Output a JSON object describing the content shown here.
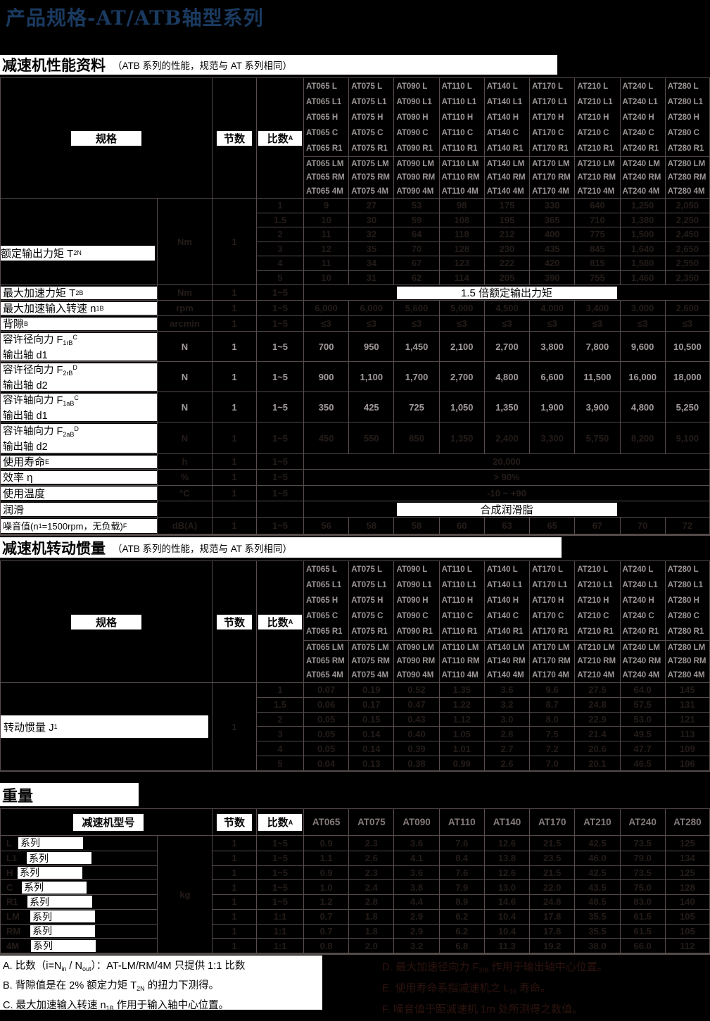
{
  "page": {
    "title": "产品规格-AT/ATB轴型系列"
  },
  "colors": {
    "title": "#1a3a60",
    "page_bg": "#000000",
    "box_bg": "#ffffff",
    "grid": "#554b4b",
    "bright_text": "#a39b9b",
    "header_text": "#9e9696",
    "faint_text": "#241c19",
    "faint_red": "#2e130e"
  },
  "sections": {
    "performance": {
      "title": "减速机性能资料",
      "subtitle": "（ATB 系列的性能，规范与 AT 系列相同）"
    },
    "inertia": {
      "title": "减速机转动惯量",
      "subtitle": "（ATB 系列的性能，规范与 AT 系列相同）"
    },
    "weight": {
      "title": "重量"
    }
  },
  "table_header": {
    "spec": "规格",
    "stages": "节数",
    "ratio": "比数",
    "ratio_sup": "A"
  },
  "models": [
    "AT065",
    "AT075",
    "AT090",
    "AT110",
    "AT140",
    "AT170",
    "AT210",
    "AT240",
    "AT280"
  ],
  "variant_groups": [
    [
      "L",
      "L1",
      "H",
      "C",
      "R1"
    ],
    [
      "LM",
      "RM",
      "4M"
    ]
  ],
  "performance_rows": [
    {
      "id": "t2n",
      "type": "block",
      "vis": "faint",
      "unit": "Nm",
      "stages": "1",
      "label": [
        [
          "t",
          "额定输出力矩 T"
        ],
        [
          "sub",
          "2N"
        ]
      ],
      "subrows": [
        {
          "ratio": "1",
          "values": [
            "9",
            "27",
            "53",
            "98",
            "175",
            "330",
            "640",
            "1,250",
            "2,050"
          ]
        },
        {
          "ratio": "1.5",
          "values": [
            "10",
            "30",
            "59",
            "108",
            "195",
            "365",
            "710",
            "1,380",
            "2,250"
          ]
        },
        {
          "ratio": "2",
          "values": [
            "11",
            "32",
            "64",
            "118",
            "212",
            "400",
            "775",
            "1,500",
            "2,450"
          ]
        },
        {
          "ratio": "3",
          "values": [
            "12",
            "35",
            "70",
            "128",
            "230",
            "435",
            "845",
            "1,640",
            "2,650"
          ]
        },
        {
          "ratio": "4",
          "values": [
            "11",
            "34",
            "67",
            "123",
            "222",
            "420",
            "815",
            "1,580",
            "2,550"
          ]
        },
        {
          "ratio": "5",
          "values": [
            "10",
            "31",
            "62",
            "114",
            "205",
            "390",
            "755",
            "1,460",
            "2,350"
          ]
        }
      ]
    },
    {
      "id": "t2b",
      "type": "span",
      "vis": "faint",
      "unit": "Nm",
      "stages": "1",
      "ratio": "1~5",
      "label": [
        [
          "t",
          "最大加速力矩 T"
        ],
        [
          "sub",
          "2B"
        ]
      ],
      "span_box": "1.5 倍额定输出力矩"
    },
    {
      "id": "n1b",
      "type": "cells",
      "vis": "faint",
      "unit": "rpm",
      "stages": "1",
      "ratio": "1~5",
      "label": [
        [
          "t",
          "最大加速输入转速 n"
        ],
        [
          "sub",
          "1B"
        ]
      ],
      "values": [
        "6,000",
        "6,000",
        "5,600",
        "5,000",
        "4,500",
        "4,000",
        "3,400",
        "3,000",
        "2,600"
      ]
    },
    {
      "id": "backlash",
      "type": "cells",
      "vis": "faint",
      "unit": "arcmin",
      "stages": "1",
      "ratio": "1~5",
      "label": [
        [
          "t",
          "背隙 "
        ],
        [
          "sup",
          "B"
        ]
      ],
      "values": [
        "≤3",
        "≤3",
        "≤3",
        "≤3",
        "≤3",
        "≤3",
        "≤3",
        "≤3",
        "≤3"
      ]
    },
    {
      "id": "f1rb",
      "type": "cells2",
      "vis": "bright",
      "unit": "N",
      "stages": "1",
      "ratio": "1~5",
      "label": [
        [
          "t",
          "容许径向力 F"
        ],
        [
          "sub",
          "1rB"
        ],
        [
          "sup",
          "C"
        ]
      ],
      "label2": "输出轴 d1",
      "values": [
        "700",
        "950",
        "1,450",
        "2,100",
        "2,700",
        "3,800",
        "7,800",
        "9,600",
        "10,500"
      ]
    },
    {
      "id": "f2rb",
      "type": "cells2",
      "vis": "bright",
      "unit": "N",
      "stages": "1",
      "ratio": "1~5",
      "label": [
        [
          "t",
          "容许径向力 F"
        ],
        [
          "sub",
          "2rB"
        ],
        [
          "sup",
          "D"
        ]
      ],
      "label2": "输出轴 d2",
      "values": [
        "900",
        "1,100",
        "1,700",
        "2,700",
        "4,800",
        "6,600",
        "11,500",
        "16,000",
        "18,000"
      ]
    },
    {
      "id": "f1ab",
      "type": "cells2",
      "vis": "bright",
      "unit": "N",
      "stages": "1",
      "ratio": "1~5",
      "label": [
        [
          "t",
          "容许轴向力 F"
        ],
        [
          "sub",
          "1aB"
        ],
        [
          "sup",
          "C"
        ]
      ],
      "label2": "输出轴 d1",
      "values": [
        "350",
        "425",
        "725",
        "1,050",
        "1,350",
        "1,900",
        "3,900",
        "4,800",
        "5,250"
      ]
    },
    {
      "id": "f2ab",
      "type": "cells2",
      "vis": "faint",
      "unit": "N",
      "stages": "1",
      "ratio": "1~5",
      "label": [
        [
          "t",
          "容许轴向力 F"
        ],
        [
          "sub",
          "2aB"
        ],
        [
          "sup",
          "D"
        ]
      ],
      "label2": "输出轴 d2",
      "values": [
        "450",
        "550",
        "850",
        "1,350",
        "2,400",
        "3,300",
        "5,750",
        "8,200",
        "9,100"
      ]
    },
    {
      "id": "life",
      "type": "span",
      "vis": "faint",
      "unit": "h",
      "stages": "1",
      "ratio": "1~5",
      "label": [
        [
          "t",
          "使用寿命 "
        ],
        [
          "sup",
          "E"
        ]
      ],
      "span_text": "20,000"
    },
    {
      "id": "eff",
      "type": "span",
      "vis": "faint",
      "unit": "%",
      "stages": "1",
      "ratio": "1~5",
      "label": [
        [
          "t",
          "效率 η"
        ]
      ],
      "span_text": "> 90%"
    },
    {
      "id": "temp",
      "type": "span",
      "vis": "faint",
      "unit": "°C",
      "stages": "1",
      "ratio": "1~5",
      "label": [
        [
          "t",
          "使用温度"
        ]
      ],
      "span_text": "-10 ~ +90"
    },
    {
      "id": "lub",
      "type": "span",
      "vis": "faint",
      "unit": "",
      "stages": "",
      "ratio": "",
      "label": [
        [
          "t",
          "润滑"
        ]
      ],
      "span_box": "合成润滑脂"
    },
    {
      "id": "noise",
      "type": "cells",
      "vis": "faint",
      "unit": "dB(A)",
      "stages": "1",
      "ratio": "1~5",
      "small_label": true,
      "label": [
        [
          "t",
          "噪音值(n"
        ],
        [
          "sub",
          "1"
        ],
        [
          "t",
          "=1500rpm，无负载)"
        ],
        [
          "sup",
          "F"
        ]
      ],
      "values": [
        "56",
        "58",
        "58",
        "60",
        "63",
        "65",
        "67",
        "70",
        "72"
      ]
    }
  ],
  "inertia_row": {
    "label": [
      [
        "t",
        "转动惯量 J"
      ],
      [
        "sub",
        "1"
      ]
    ],
    "stages": "1",
    "subrows": [
      {
        "ratio": "1",
        "values": [
          "0.07",
          "0.19",
          "0.52",
          "1.35",
          "3.6",
          "9.6",
          "27.5",
          "64.0",
          "145"
        ]
      },
      {
        "ratio": "1.5",
        "values": [
          "0.06",
          "0.17",
          "0.47",
          "1.22",
          "3.2",
          "8.7",
          "24.8",
          "57.5",
          "131"
        ]
      },
      {
        "ratio": "2",
        "values": [
          "0.05",
          "0.15",
          "0.43",
          "1.12",
          "3.0",
          "8.0",
          "22.9",
          "53.0",
          "121"
        ]
      },
      {
        "ratio": "3",
        "values": [
          "0.05",
          "0.14",
          "0.40",
          "1.05",
          "2.8",
          "7.5",
          "21.4",
          "49.5",
          "113"
        ]
      },
      {
        "ratio": "4",
        "values": [
          "0.05",
          "0.14",
          "0.39",
          "1.01",
          "2.7",
          "7.2",
          "20.6",
          "47.7",
          "109"
        ]
      },
      {
        "ratio": "5",
        "values": [
          "0.04",
          "0.13",
          "0.38",
          "0.99",
          "2.6",
          "7.0",
          "20.1",
          "46.5",
          "106"
        ]
      }
    ]
  },
  "weight_table": {
    "model_col_label": "减速机型号",
    "unit": "kg",
    "col_headers": [
      "AT065",
      "AT075",
      "AT090",
      "AT110",
      "AT140",
      "AT170",
      "AT210",
      "AT240",
      "AT280"
    ],
    "rows": [
      {
        "prefix": "L",
        "series_label": "系列",
        "indent": 25,
        "stages": "1",
        "ratio": "1~5",
        "values": [
          "0.9",
          "2.3",
          "3.6",
          "7.6",
          "12.6",
          "21.5",
          "42.5",
          "73.5",
          "125"
        ]
      },
      {
        "prefix": "L1",
        "series_label": "系列",
        "indent": 37,
        "stages": "1",
        "ratio": "1~5",
        "values": [
          "1.1",
          "2.6",
          "4.1",
          "8.4",
          "13.8",
          "23.5",
          "46.0",
          "79.0",
          "134"
        ]
      },
      {
        "prefix": "H",
        "series_label": "系列",
        "indent": 24,
        "stages": "1",
        "ratio": "1~5",
        "values": [
          "0.9",
          "2.3",
          "3.6",
          "7.6",
          "12.6",
          "21.5",
          "42.5",
          "73.5",
          "125"
        ]
      },
      {
        "prefix": "C",
        "series_label": "系列",
        "indent": 30,
        "stages": "1",
        "ratio": "1~5",
        "values": [
          "1.0",
          "2.4",
          "3.8",
          "7.9",
          "13.0",
          "22.0",
          "43.5",
          "75.0",
          "128"
        ]
      },
      {
        "prefix": "R1",
        "series_label": "系列",
        "indent": 38,
        "stages": "1",
        "ratio": "1~5",
        "values": [
          "1.2",
          "2.8",
          "4.4",
          "8.9",
          "14.6",
          "24.8",
          "48.5",
          "83.0",
          "140"
        ]
      },
      {
        "prefix": "LM",
        "series_label": "系列",
        "indent": 42,
        "stages": "1",
        "ratio": "1:1",
        "values": [
          "0.7",
          "1.8",
          "2.9",
          "6.2",
          "10.4",
          "17.8",
          "35.5",
          "61.5",
          "105"
        ]
      },
      {
        "prefix": "RM",
        "series_label": "系列",
        "indent": 42,
        "stages": "1",
        "ratio": "1:1",
        "values": [
          "0.7",
          "1.8",
          "2.9",
          "6.2",
          "10.4",
          "17.8",
          "35.5",
          "61.5",
          "105"
        ]
      },
      {
        "prefix": "4M",
        "series_label": "系列",
        "indent": 43,
        "stages": "1",
        "ratio": "1:1",
        "values": [
          "0.8",
          "2.0",
          "3.2",
          "6.8",
          "11.3",
          "19.2",
          "38.0",
          "66.0",
          "112"
        ]
      }
    ]
  },
  "footnotes": [
    [
      [
        "t",
        "A. 比数（i=N"
      ],
      [
        "sub",
        "in"
      ],
      [
        "t",
        " / N"
      ],
      [
        "sub",
        "out"
      ],
      [
        "t",
        "）：AT-LM/RM/4M 只提供 1:1 比数"
      ]
    ],
    [
      [
        "t",
        "B. 背隙值是在 2% 额定力矩 T"
      ],
      [
        "sub",
        "2N"
      ],
      [
        "t",
        " 的扭力下测得。"
      ]
    ],
    [
      [
        "t",
        "C. 最大加速输入转速 n"
      ],
      [
        "sub",
        "1B"
      ],
      [
        "t",
        " 作用于输入轴中心位置。"
      ]
    ]
  ],
  "obscured_notes": [
    [
      [
        "t",
        "D. 最大加速径向力 F"
      ],
      [
        "sub",
        "2rB"
      ],
      [
        "t",
        " 作用于输出轴中心位置。"
      ]
    ],
    [
      [
        "t",
        "E. 使用寿命系指减速机之 L"
      ],
      [
        "sub",
        "10"
      ],
      [
        "t",
        " 寿命。"
      ]
    ],
    [
      [
        "t",
        "F. 噪音值于距减速机 1m 处所测得之数值。"
      ]
    ]
  ]
}
